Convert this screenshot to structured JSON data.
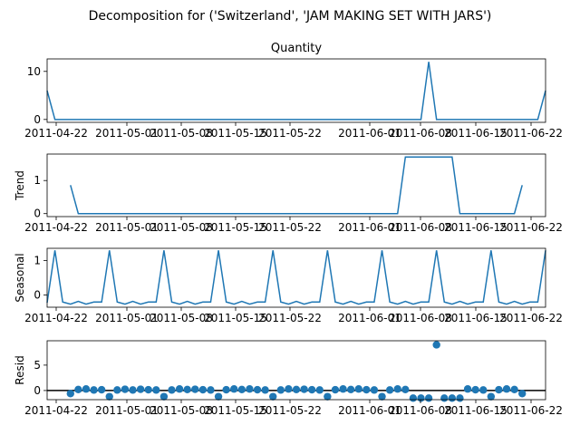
{
  "figure_title": "Decomposition for ('Switzerland', 'JAM MAKING SET WITH JARS')",
  "chart_data": [
    {
      "type": "line",
      "title": "Quantity",
      "ylabel": "",
      "xlabel": "",
      "x_start": "2011-04-20",
      "x": [
        0,
        1,
        2,
        3,
        4,
        5,
        6,
        7,
        8,
        9,
        10,
        11,
        12,
        13,
        14,
        15,
        16,
        17,
        18,
        19,
        20,
        21,
        22,
        23,
        24,
        25,
        26,
        27,
        28,
        29,
        30,
        31,
        32,
        33,
        34,
        35,
        36,
        37,
        38,
        39,
        40,
        41,
        42,
        43,
        44,
        45,
        46,
        47,
        48,
        49,
        50,
        51,
        52,
        53,
        54,
        55,
        56,
        57,
        58,
        59,
        60,
        61,
        62,
        63,
        64
      ],
      "values": [
        6,
        0,
        0,
        0,
        0,
        0,
        0,
        0,
        0,
        0,
        0,
        0,
        0,
        0,
        0,
        0,
        0,
        0,
        0,
        0,
        0,
        0,
        0,
        0,
        0,
        0,
        0,
        0,
        0,
        0,
        0,
        0,
        0,
        0,
        0,
        0,
        0,
        0,
        0,
        0,
        0,
        0,
        0,
        0,
        0,
        0,
        0,
        0,
        0,
        0,
        0,
        0,
        0,
        0,
        0,
        0,
        0,
        0,
        0,
        0,
        0,
        0,
        0,
        0,
        6
      ],
      "spike": {
        "x": 49,
        "value": 12
      },
      "yticks": [
        0,
        10
      ],
      "ylim": [
        -0.6,
        12.6
      ],
      "xlim": [
        0,
        64
      ],
      "xticks": [
        "2011-04-22",
        "2011-05-01",
        "2011-05-08",
        "2011-05-15",
        "2011-05-22",
        "2011-06-01",
        "2011-06-08",
        "2011-06-15",
        "2011-06-22"
      ],
      "grid": false
    },
    {
      "type": "line",
      "title": "",
      "ylabel": "Trend",
      "xlabel": "",
      "values": [
        null,
        null,
        null,
        0.86,
        0,
        0,
        0,
        0,
        0,
        0,
        0,
        0,
        0,
        0,
        0,
        0,
        0,
        0,
        0,
        0,
        0,
        0,
        0,
        0,
        0,
        0,
        0,
        0,
        0,
        0,
        0,
        0,
        0,
        0,
        0,
        0,
        0,
        0,
        0,
        0,
        0,
        0,
        0,
        0,
        0,
        0,
        1.71,
        1.71,
        1.71,
        1.71,
        1.71,
        1.71,
        1.71,
        0,
        0,
        0,
        0,
        0,
        0,
        0,
        0,
        0.86,
        null,
        null,
        null
      ],
      "yticks": [
        0,
        1
      ],
      "ylim": [
        -0.09,
        1.8
      ],
      "xlim": [
        0,
        64
      ],
      "xticks": [
        "2011-04-22",
        "2011-05-01",
        "2011-05-08",
        "2011-05-15",
        "2011-05-22",
        "2011-06-01",
        "2011-06-08",
        "2011-06-15",
        "2011-06-22"
      ],
      "grid": false
    },
    {
      "type": "line",
      "title": "",
      "ylabel": "Seasonal",
      "xlabel": "",
      "pattern": [
        1.29,
        -0.2,
        -0.26,
        -0.18,
        -0.26,
        -0.2,
        -0.2
      ],
      "first_value": -0.22,
      "yticks": [
        0,
        1
      ],
      "ylim": [
        -0.35,
        1.35
      ],
      "xlim": [
        0,
        64
      ],
      "xticks": [
        "2011-04-22",
        "2011-05-01",
        "2011-05-08",
        "2011-05-15",
        "2011-05-22",
        "2011-06-01",
        "2011-06-08",
        "2011-06-15",
        "2011-06-22"
      ],
      "grid": false
    },
    {
      "type": "scatter",
      "title": "",
      "ylabel": "Resid",
      "xlabel": "",
      "values": [
        null,
        null,
        null,
        -0.6,
        0.2,
        0.3,
        0.1,
        0.15,
        -1.2,
        0.1,
        0.25,
        0.1,
        0.25,
        0.15,
        0.1,
        -1.2,
        0.1,
        0.3,
        0.2,
        0.25,
        0.15,
        0.1,
        -1.2,
        0.15,
        0.3,
        0.2,
        0.3,
        0.15,
        0.1,
        -1.2,
        0.1,
        0.3,
        0.2,
        0.25,
        0.15,
        0.1,
        -1.2,
        0.15,
        0.3,
        0.2,
        0.3,
        0.15,
        0.1,
        -1.2,
        0.1,
        0.3,
        0.2,
        -1.5,
        -1.5,
        -1.5,
        9,
        -1.5,
        -1.5,
        -1.5,
        0.3,
        0.15,
        0.1,
        -1.2,
        0.15,
        0.3,
        0.2,
        -0.6,
        null,
        null,
        null
      ],
      "baseline": 0,
      "yticks": [
        0,
        5
      ],
      "ylim": [
        -1.8,
        9.8
      ],
      "xlim": [
        0,
        64
      ],
      "xticks": [
        "2011-04-22",
        "2011-05-01",
        "2011-05-08",
        "2011-05-15",
        "2011-05-22",
        "2011-06-01",
        "2011-06-08",
        "2011-06-15",
        "2011-06-22"
      ],
      "grid": false
    }
  ],
  "colors": {
    "series": "#1f77b4",
    "axis": "#000000",
    "baseline": "#000000"
  }
}
